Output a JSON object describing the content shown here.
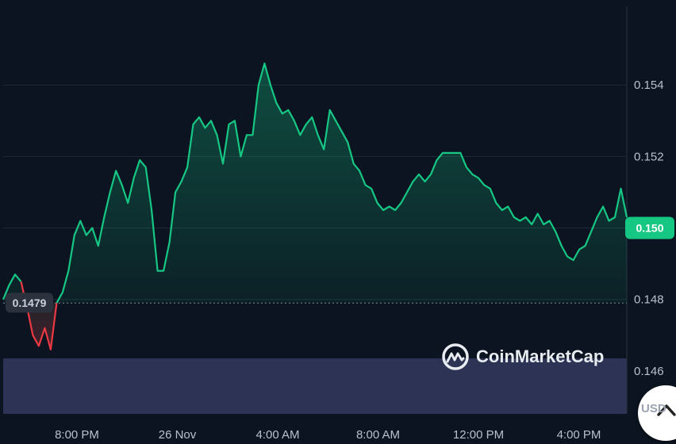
{
  "chart_data": {
    "type": "area",
    "x_labels": [
      "8:00 PM",
      "26 Nov",
      "4:00 AM",
      "8:00 AM",
      "12:00 PM",
      "4:00 PM"
    ],
    "y_ticks": [
      "0.154",
      "0.152",
      "0.150",
      "0.148",
      "0.146"
    ],
    "y_tick_values": [
      0.154,
      0.152,
      0.15,
      0.148,
      0.146
    ],
    "ylim": [
      0.1448,
      0.1562
    ],
    "baseline": 0.1479,
    "baseline_label": "0.1479",
    "current_value": 0.15,
    "current_label": "0.150",
    "up_color": "#16c784",
    "down_color": "#ea3943",
    "volume_color": "#2c3355",
    "grid": true,
    "series": [
      {
        "values": [
          0.148,
          0.1484,
          0.1487,
          0.1485,
          0.1478,
          0.147,
          0.1467,
          0.1472,
          0.1466,
          0.1479,
          0.1482,
          0.1488,
          0.1498,
          0.1502,
          0.1498,
          0.15,
          0.1495,
          0.1503,
          0.151,
          0.1516,
          0.1512,
          0.1507,
          0.1514,
          0.1519,
          0.1517,
          0.1505,
          0.1488,
          0.1488,
          0.1496,
          0.151,
          0.1513,
          0.1517,
          0.1529,
          0.1531,
          0.1528,
          0.153,
          0.1526,
          0.1518,
          0.1529,
          0.153,
          0.152,
          0.1526,
          0.1526,
          0.154,
          0.1546,
          0.154,
          0.1535,
          0.1532,
          0.1533,
          0.153,
          0.1526,
          0.1529,
          0.1531,
          0.1526,
          0.1522,
          0.1533,
          0.153,
          0.1527,
          0.1524,
          0.1518,
          0.1516,
          0.1512,
          0.1511,
          0.1507,
          0.1505,
          0.1506,
          0.1505,
          0.1507,
          0.151,
          0.1513,
          0.1515,
          0.1513,
          0.1515,
          0.1519,
          0.1521,
          0.1521,
          0.1521,
          0.1521,
          0.1517,
          0.1515,
          0.1514,
          0.1512,
          0.1511,
          0.1507,
          0.1505,
          0.1506,
          0.1503,
          0.1502,
          0.1503,
          0.1501,
          0.1504,
          0.1501,
          0.1502,
          0.1499,
          0.1495,
          0.1492,
          0.1491,
          0.1494,
          0.1495,
          0.1499,
          0.1503,
          0.1506,
          0.1502,
          0.1503,
          0.1511,
          0.1503
        ]
      }
    ]
  },
  "watermark": {
    "brand": "CoinMarketCap"
  },
  "controls": {
    "currency": "USD"
  }
}
